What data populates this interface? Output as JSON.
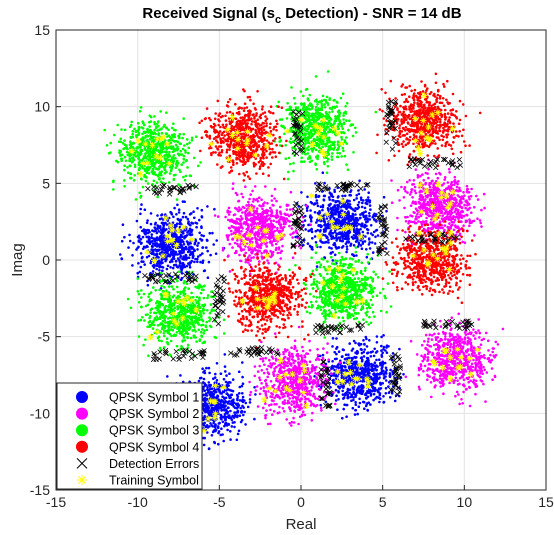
{
  "chart_data": {
    "type": "scatter",
    "title_main": "Received Signal (s",
    "title_sub": "c",
    "title_tail": " Detection) - SNR = 14 dB",
    "xlabel": "Real",
    "ylabel": "Imag",
    "xlim": [
      -15,
      15
    ],
    "ylim": [
      -15,
      15
    ],
    "xticks": [
      "-15",
      "-10",
      "-5",
      "0",
      "5",
      "10",
      "15"
    ],
    "yticks": [
      "15",
      "10",
      "5",
      "0",
      "-5",
      "-10",
      "-15"
    ],
    "grid": true,
    "legend_position": "bottom-left",
    "series": [
      {
        "name": "QPSK Symbol 1",
        "color": "#0000ff",
        "marker": "dot",
        "centers": [
          [
            -8,
            1
          ],
          [
            2.5,
            2.5
          ],
          [
            3.5,
            -7.5
          ],
          [
            -5.5,
            -9.5
          ]
        ]
      },
      {
        "name": "QPSK Symbol 2",
        "color": "#ff00ff",
        "marker": "dot",
        "centers": [
          [
            -2.5,
            2
          ],
          [
            8.5,
            3.5
          ],
          [
            9.5,
            -6.5
          ],
          [
            -0.5,
            -8
          ]
        ]
      },
      {
        "name": "QPSK Symbol 3",
        "color": "#00ff00",
        "marker": "dot",
        "centers": [
          [
            -9,
            7
          ],
          [
            1,
            8.5
          ],
          [
            2.5,
            -2
          ],
          [
            -7.5,
            -3.5
          ]
        ]
      },
      {
        "name": "QPSK Symbol 4",
        "color": "#ff0000",
        "marker": "dot",
        "centers": [
          [
            -3.5,
            8
          ],
          [
            7.5,
            9
          ],
          [
            8,
            0
          ],
          [
            -2,
            -2.5
          ]
        ]
      },
      {
        "name": "Detection Errors",
        "color": "#000000",
        "marker": "x"
      },
      {
        "name": "Training Symbol",
        "color": "#ffff00",
        "marker": "star"
      }
    ]
  }
}
